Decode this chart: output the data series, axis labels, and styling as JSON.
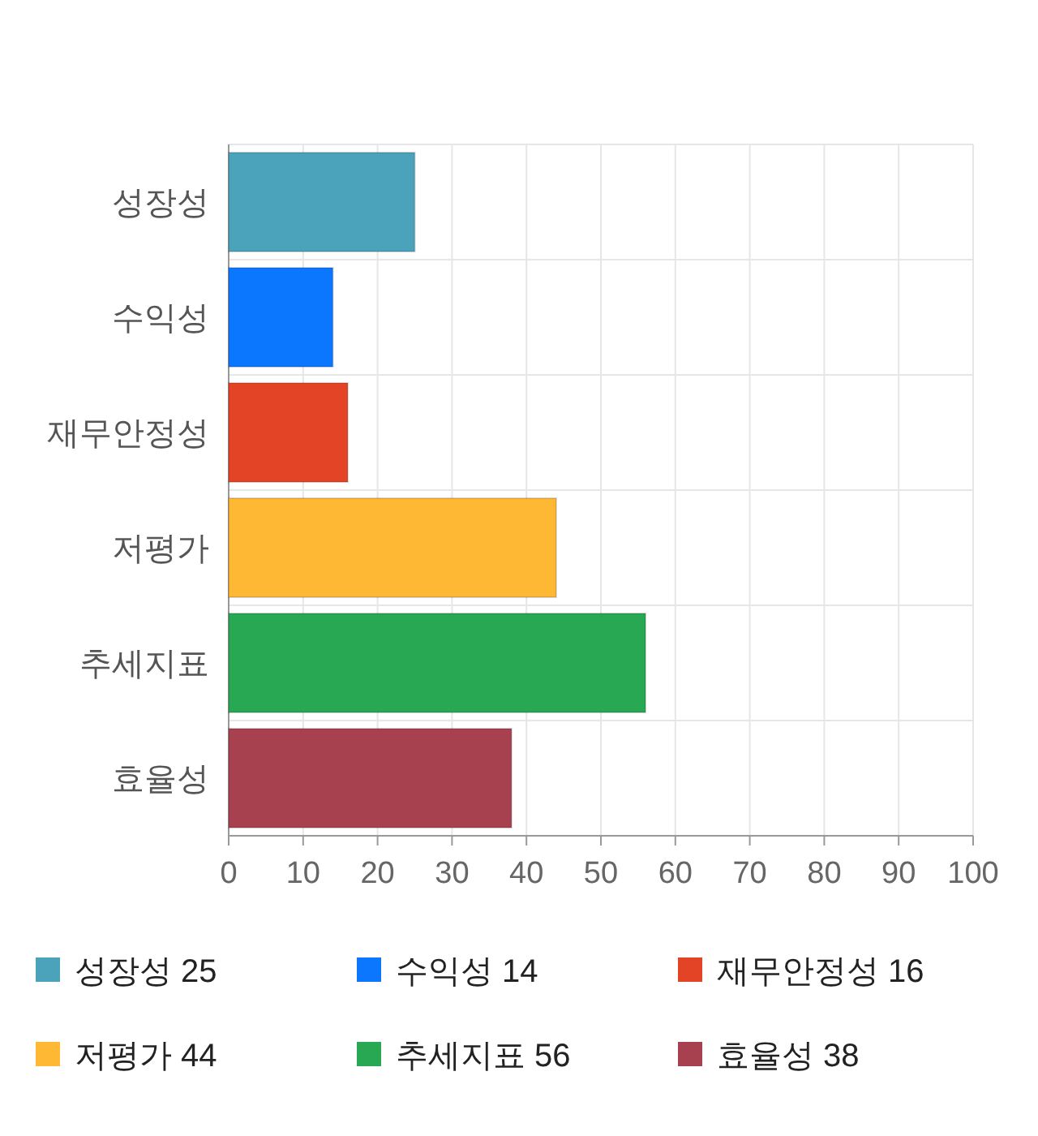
{
  "chart_data": {
    "type": "bar",
    "orientation": "horizontal",
    "categories": [
      "성장성",
      "수익성",
      "재무안정성",
      "저평가",
      "추세지표",
      "효율성"
    ],
    "series": [
      {
        "name": "성장성 25",
        "color": "#4aa3ba",
        "values": [
          25,
          null,
          null,
          null,
          null,
          null
        ]
      },
      {
        "name": "수익성 14",
        "color": "#0b77ff",
        "values": [
          null,
          14,
          null,
          null,
          null,
          null
        ]
      },
      {
        "name": "재무안정성 16",
        "color": "#e34425",
        "values": [
          null,
          null,
          16,
          null,
          null,
          null
        ]
      },
      {
        "name": "저평가 44",
        "color": "#ffb833",
        "values": [
          null,
          null,
          null,
          44,
          null,
          null
        ]
      },
      {
        "name": "추세지표 56",
        "color": "#28a853",
        "values": [
          null,
          null,
          null,
          null,
          56,
          null
        ]
      },
      {
        "name": "효율성 38",
        "color": "#a8414f",
        "values": [
          null,
          null,
          null,
          null,
          null,
          38
        ]
      }
    ],
    "xlim": [
      0,
      100
    ],
    "xticks": [
      0,
      10,
      20,
      30,
      40,
      50,
      60,
      70,
      80,
      90,
      100
    ],
    "grid": true,
    "legend": "bottom"
  }
}
